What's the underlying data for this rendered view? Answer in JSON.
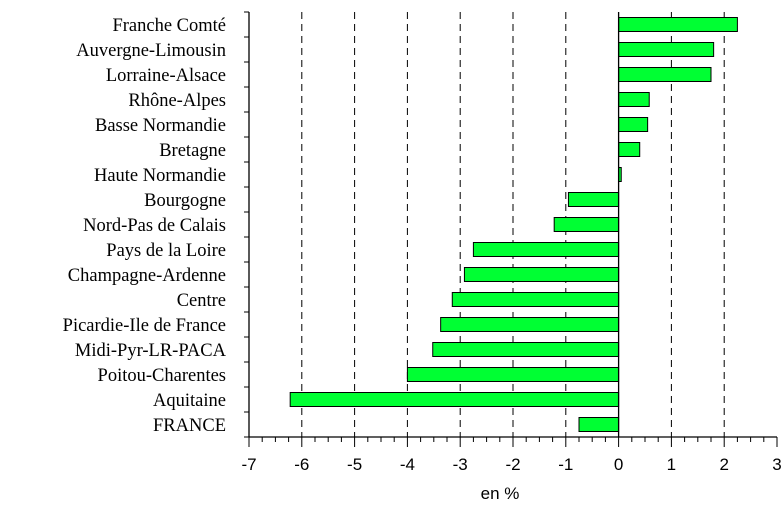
{
  "chart_data": {
    "type": "bar",
    "orientation": "horizontal",
    "title": "",
    "xlabel": "en %",
    "ylabel": "",
    "xlim": [
      -7,
      3
    ],
    "x_ticks": [
      -7,
      -6,
      -5,
      -4,
      -3,
      -2,
      -1,
      0,
      1,
      2,
      3
    ],
    "grid": "vertical dashed lines at integer values",
    "bar_color": "#00ff33",
    "categories": [
      "Franche Comté",
      "Auvergne-Limousin",
      "Lorraine-Alsace",
      "Rhône-Alpes",
      "Basse Normandie",
      "Bretagne",
      "Haute Normandie",
      "Bourgogne",
      "Nord-Pas de Calais",
      "Pays de la Loire",
      "Champagne-Ardenne",
      "Centre",
      "Picardie-Ile de France",
      "Midi-Pyr-LR-PACA",
      "Poitou-Charentes",
      "Aquitaine",
      "FRANCE"
    ],
    "values": [
      2.25,
      1.8,
      1.75,
      0.58,
      0.55,
      0.4,
      0.05,
      -0.95,
      -1.22,
      -2.75,
      -2.92,
      -3.15,
      -3.37,
      -3.52,
      -4.0,
      -6.22,
      -0.75
    ]
  }
}
